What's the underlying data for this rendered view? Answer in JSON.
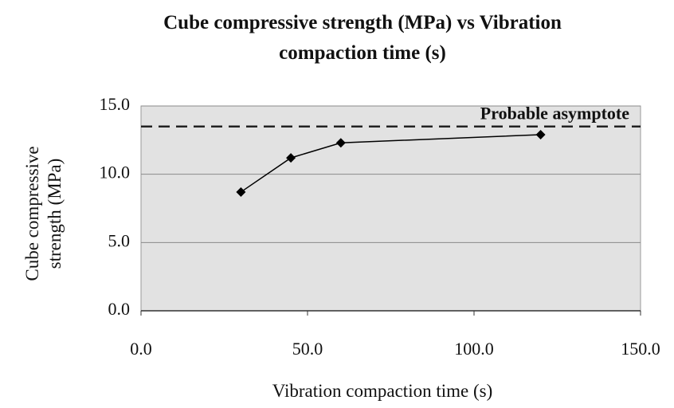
{
  "chart_data": {
    "type": "line",
    "title": "Cube compressive strength (MPa) vs Vibration compaction time (s)",
    "x_label": "Vibration compaction time (s)",
    "y_label": "Cube compressive strength (MPa)",
    "x": [
      30,
      45,
      60,
      120
    ],
    "series": [
      {
        "color": "#000000",
        "values": [
          8.7,
          11.2,
          12.3,
          12.9
        ]
      }
    ],
    "xlim": [
      0,
      150
    ],
    "xticks": [
      {
        "value": 0,
        "label": "0.0"
      },
      {
        "value": 50,
        "label": "50.0"
      },
      {
        "value": 100,
        "label": "100.0"
      },
      {
        "value": 150,
        "label": "150.0"
      }
    ],
    "ylim": [
      0,
      15
    ],
    "yticks": [
      {
        "value": 0,
        "label": "0.0"
      },
      {
        "value": 5,
        "label": "5.0"
      },
      {
        "value": 10,
        "label": "10.0"
      },
      {
        "value": 15,
        "label": "15.0"
      }
    ],
    "asymptote": {
      "value": 13.5,
      "label": "Probable asymptote"
    },
    "grid": true
  }
}
